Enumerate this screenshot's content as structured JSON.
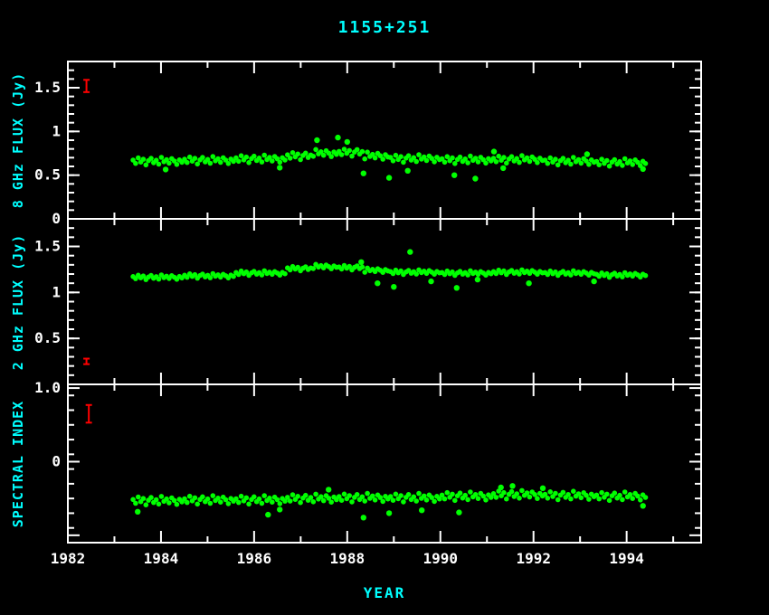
{
  "colors": {
    "background": "#000000",
    "frame": "#ffffff",
    "accent": "#00ffff",
    "points": "#00ff00",
    "error": "#ff0000"
  },
  "chart_data": {
    "type": "scatter",
    "title": "1155+251",
    "xlabel": "YEAR",
    "xlim": [
      1982,
      1995.6
    ],
    "x_tick_labels": [
      1982,
      1984,
      1986,
      1988,
      1990,
      1992,
      1994
    ],
    "x_tick_minor_step": 1,
    "legend": "none",
    "grid": false,
    "panels": [
      {
        "name": "flux-8ghz",
        "ylabel": "8 GHz FLUX (Jy)",
        "ylim": [
          0,
          1.8
        ],
        "ytick_minor": 0.1,
        "yticks": [
          {
            "v": 0,
            "label": "0"
          },
          {
            "v": 0.5,
            "label": "0.5"
          },
          {
            "v": 1,
            "label": "1"
          },
          {
            "v": 1.5,
            "label": "1.5"
          }
        ],
        "x_start": 1983.4,
        "x_step": 0.0553,
        "y": [
          0.672,
          0.634,
          0.697,
          0.65,
          0.682,
          0.618,
          0.665,
          0.692,
          0.642,
          0.67,
          0.626,
          0.703,
          0.654,
          0.678,
          0.637,
          0.689,
          0.662,
          0.623,
          0.674,
          0.648,
          0.682,
          0.644,
          0.707,
          0.66,
          0.692,
          0.628,
          0.675,
          0.702,
          0.652,
          0.68,
          0.636,
          0.713,
          0.664,
          0.688,
          0.647,
          0.699,
          0.672,
          0.633,
          0.684,
          0.658,
          0.697,
          0.659,
          0.722,
          0.675,
          0.707,
          0.643,
          0.69,
          0.717,
          0.667,
          0.695,
          0.651,
          0.728,
          0.679,
          0.703,
          0.662,
          0.714,
          0.687,
          0.648,
          0.699,
          0.673,
          0.732,
          0.694,
          0.757,
          0.71,
          0.742,
          0.678,
          0.725,
          0.752,
          0.702,
          0.73,
          0.716,
          0.793,
          0.744,
          0.768,
          0.727,
          0.779,
          0.752,
          0.713,
          0.764,
          0.738,
          0.772,
          0.734,
          0.797,
          0.75,
          0.782,
          0.718,
          0.765,
          0.792,
          0.742,
          0.77,
          0.686,
          0.763,
          0.714,
          0.738,
          0.697,
          0.749,
          0.722,
          0.683,
          0.734,
          0.708,
          0.702,
          0.664,
          0.727,
          0.68,
          0.712,
          0.648,
          0.695,
          0.722,
          0.672,
          0.7,
          0.656,
          0.733,
          0.684,
          0.708,
          0.667,
          0.719,
          0.692,
          0.653,
          0.704,
          0.678,
          0.687,
          0.649,
          0.712,
          0.665,
          0.697,
          0.633,
          0.68,
          0.707,
          0.657,
          0.685,
          0.641,
          0.718,
          0.669,
          0.693,
          0.652,
          0.704,
          0.677,
          0.638,
          0.689,
          0.663,
          0.692,
          0.654,
          0.717,
          0.67,
          0.702,
          0.638,
          0.685,
          0.712,
          0.662,
          0.69,
          0.646,
          0.723,
          0.674,
          0.698,
          0.657,
          0.709,
          0.682,
          0.643,
          0.694,
          0.668,
          0.672,
          0.634,
          0.697,
          0.65,
          0.682,
          0.618,
          0.665,
          0.692,
          0.642,
          0.67,
          0.626,
          0.703,
          0.654,
          0.678,
          0.637,
          0.689,
          0.662,
          0.623,
          0.674,
          0.648,
          0.657,
          0.619,
          0.682,
          0.635,
          0.667,
          0.603,
          0.65,
          0.677,
          0.627,
          0.655,
          0.611,
          0.688,
          0.639,
          0.663,
          0.622,
          0.674,
          0.647,
          0.608,
          0.659,
          0.633
        ],
        "outliers": [
          [
            1984.1,
            0.565
          ],
          [
            1986.55,
            0.585
          ],
          [
            1987.35,
            0.9
          ],
          [
            1987.8,
            0.93
          ],
          [
            1988.0,
            0.88
          ],
          [
            1988.35,
            0.52
          ],
          [
            1988.9,
            0.47
          ],
          [
            1989.3,
            0.55
          ],
          [
            1990.3,
            0.5
          ],
          [
            1990.75,
            0.46
          ],
          [
            1991.15,
            0.77
          ],
          [
            1991.35,
            0.58
          ],
          [
            1993.15,
            0.74
          ],
          [
            1994.35,
            0.57
          ]
        ],
        "error_bar": {
          "x": 1982.4,
          "y": 1.52,
          "half": 0.07
        }
      },
      {
        "name": "flux-2ghz",
        "ylabel": "2 GHz FLUX (Jy)",
        "ylim": [
          0,
          1.8
        ],
        "ytick_minor": 0.1,
        "yticks": [
          {
            "v": 0.5,
            "label": "0.5"
          },
          {
            "v": 1,
            "label": "1"
          },
          {
            "v": 1.5,
            "label": "1.5"
          }
        ],
        "x_start": 1983.4,
        "x_step": 0.0553,
        "y": [
          1.172,
          1.15,
          1.187,
          1.159,
          1.178,
          1.14,
          1.168,
          1.184,
          1.154,
          1.171,
          1.145,
          1.19,
          1.161,
          1.176,
          1.152,
          1.182,
          1.166,
          1.143,
          1.173,
          1.158,
          1.187,
          1.165,
          1.202,
          1.174,
          1.193,
          1.155,
          1.183,
          1.199,
          1.169,
          1.186,
          1.16,
          1.205,
          1.176,
          1.191,
          1.167,
          1.197,
          1.181,
          1.158,
          1.188,
          1.173,
          1.217,
          1.195,
          1.232,
          1.204,
          1.223,
          1.185,
          1.213,
          1.229,
          1.199,
          1.216,
          1.19,
          1.235,
          1.206,
          1.221,
          1.197,
          1.227,
          1.211,
          1.188,
          1.218,
          1.203,
          1.267,
          1.245,
          1.282,
          1.254,
          1.273,
          1.235,
          1.263,
          1.279,
          1.249,
          1.266,
          1.26,
          1.305,
          1.276,
          1.291,
          1.267,
          1.297,
          1.281,
          1.258,
          1.288,
          1.273,
          1.277,
          1.255,
          1.292,
          1.264,
          1.283,
          1.245,
          1.273,
          1.289,
          1.259,
          1.276,
          1.22,
          1.265,
          1.236,
          1.251,
          1.227,
          1.257,
          1.241,
          1.218,
          1.248,
          1.233,
          1.227,
          1.205,
          1.242,
          1.214,
          1.233,
          1.195,
          1.223,
          1.239,
          1.209,
          1.226,
          1.2,
          1.245,
          1.216,
          1.231,
          1.207,
          1.237,
          1.221,
          1.198,
          1.228,
          1.213,
          1.217,
          1.195,
          1.232,
          1.204,
          1.223,
          1.185,
          1.213,
          1.229,
          1.199,
          1.216,
          1.19,
          1.235,
          1.206,
          1.221,
          1.197,
          1.227,
          1.211,
          1.188,
          1.218,
          1.203,
          1.227,
          1.205,
          1.242,
          1.214,
          1.233,
          1.195,
          1.223,
          1.239,
          1.209,
          1.226,
          1.2,
          1.245,
          1.216,
          1.231,
          1.207,
          1.237,
          1.221,
          1.198,
          1.228,
          1.213,
          1.217,
          1.195,
          1.232,
          1.204,
          1.223,
          1.185,
          1.213,
          1.229,
          1.199,
          1.216,
          1.19,
          1.235,
          1.206,
          1.221,
          1.197,
          1.227,
          1.211,
          1.188,
          1.218,
          1.203,
          1.197,
          1.175,
          1.212,
          1.184,
          1.203,
          1.165,
          1.193,
          1.209,
          1.179,
          1.196,
          1.17,
          1.215,
          1.186,
          1.201,
          1.177,
          1.207,
          1.191,
          1.168,
          1.198,
          1.183
        ],
        "outliers": [
          [
            1988.3,
            1.33
          ],
          [
            1988.65,
            1.1
          ],
          [
            1989.0,
            1.06
          ],
          [
            1989.35,
            1.44
          ],
          [
            1989.8,
            1.12
          ],
          [
            1990.35,
            1.05
          ],
          [
            1990.8,
            1.14
          ],
          [
            1991.9,
            1.1
          ],
          [
            1993.3,
            1.12
          ]
        ],
        "error_bar": {
          "x": 1982.4,
          "y": 0.25,
          "half": 0.03
        }
      },
      {
        "name": "spectral-index",
        "ylabel": "SPECTRAL INDEX",
        "ylim": [
          -1.1,
          1.05
        ],
        "ytick_minor": 0.2,
        "yticks": [
          {
            "v": 1,
            "label": "1.0"
          },
          {
            "v": 0,
            "label": "0"
          },
          {
            "v": -1,
            "label": ""
          }
        ],
        "x_start": 1983.4,
        "x_step": 0.0553,
        "y": [
          -0.514,
          -0.565,
          -0.48,
          -0.543,
          -0.501,
          -0.586,
          -0.524,
          -0.487,
          -0.554,
          -0.517,
          -0.575,
          -0.472,
          -0.538,
          -0.506,
          -0.56,
          -0.492,
          -0.527,
          -0.58,
          -0.511,
          -0.546,
          -0.504,
          -0.555,
          -0.47,
          -0.533,
          -0.491,
          -0.576,
          -0.514,
          -0.477,
          -0.544,
          -0.507,
          -0.565,
          -0.462,
          -0.528,
          -0.496,
          -0.55,
          -0.482,
          -0.517,
          -0.57,
          -0.501,
          -0.536,
          -0.504,
          -0.555,
          -0.47,
          -0.533,
          -0.491,
          -0.576,
          -0.514,
          -0.477,
          -0.544,
          -0.507,
          -0.565,
          -0.462,
          -0.528,
          -0.496,
          -0.55,
          -0.482,
          -0.517,
          -0.57,
          -0.501,
          -0.536,
          -0.484,
          -0.535,
          -0.45,
          -0.513,
          -0.471,
          -0.556,
          -0.494,
          -0.457,
          -0.524,
          -0.487,
          -0.545,
          -0.442,
          -0.508,
          -0.476,
          -0.53,
          -0.462,
          -0.497,
          -0.55,
          -0.481,
          -0.516,
          -0.474,
          -0.525,
          -0.44,
          -0.503,
          -0.461,
          -0.546,
          -0.484,
          -0.447,
          -0.514,
          -0.477,
          -0.535,
          -0.432,
          -0.498,
          -0.466,
          -0.52,
          -0.452,
          -0.487,
          -0.54,
          -0.471,
          -0.506,
          -0.474,
          -0.525,
          -0.44,
          -0.503,
          -0.461,
          -0.546,
          -0.484,
          -0.447,
          -0.514,
          -0.477,
          -0.535,
          -0.432,
          -0.498,
          -0.466,
          -0.52,
          -0.452,
          -0.487,
          -0.54,
          -0.471,
          -0.506,
          -0.454,
          -0.505,
          -0.42,
          -0.483,
          -0.441,
          -0.526,
          -0.464,
          -0.427,
          -0.494,
          -0.457,
          -0.515,
          -0.412,
          -0.478,
          -0.446,
          -0.5,
          -0.432,
          -0.467,
          -0.52,
          -0.451,
          -0.486,
          -0.434,
          -0.485,
          -0.4,
          -0.463,
          -0.421,
          -0.506,
          -0.444,
          -0.407,
          -0.474,
          -0.437,
          -0.495,
          -0.392,
          -0.458,
          -0.426,
          -0.48,
          -0.412,
          -0.447,
          -0.5,
          -0.431,
          -0.466,
          -0.444,
          -0.495,
          -0.41,
          -0.473,
          -0.431,
          -0.516,
          -0.454,
          -0.417,
          -0.484,
          -0.447,
          -0.505,
          -0.402,
          -0.468,
          -0.436,
          -0.49,
          -0.422,
          -0.457,
          -0.51,
          -0.441,
          -0.476,
          -0.454,
          -0.505,
          -0.42,
          -0.483,
          -0.441,
          -0.526,
          -0.464,
          -0.427,
          -0.494,
          -0.457,
          -0.515,
          -0.412,
          -0.478,
          -0.446,
          -0.5,
          -0.432,
          -0.467,
          -0.52,
          -0.451,
          -0.486
        ],
        "outliers": [
          [
            1983.5,
            -0.68
          ],
          [
            1986.3,
            -0.72
          ],
          [
            1986.55,
            -0.65
          ],
          [
            1987.6,
            -0.38
          ],
          [
            1988.35,
            -0.76
          ],
          [
            1988.9,
            -0.7
          ],
          [
            1989.6,
            -0.66
          ],
          [
            1990.4,
            -0.69
          ],
          [
            1991.3,
            -0.35
          ],
          [
            1991.55,
            -0.33
          ],
          [
            1992.2,
            -0.36
          ],
          [
            1994.35,
            -0.6
          ]
        ],
        "error_bar": {
          "x": 1982.45,
          "y": 0.65,
          "half": 0.12
        }
      }
    ]
  }
}
